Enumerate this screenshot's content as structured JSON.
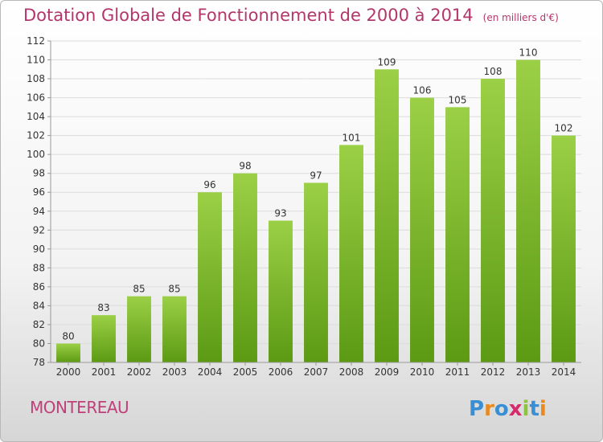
{
  "title": "Dotation Globale de Fonctionnement de 2000 à 2014",
  "subtitle": "(en milliers d'€)",
  "commune": "MONTEREAU",
  "brand": "Proxiti",
  "colors": {
    "bar_top": "#9bd046",
    "bar_bottom": "#5c9a14",
    "title": "#b3366b"
  },
  "chart_data": {
    "type": "bar",
    "title": "Dotation Globale de Fonctionnement de 2000 à 2014",
    "subtitle": "(en milliers d'€)",
    "categories": [
      "2000",
      "2001",
      "2002",
      "2003",
      "2004",
      "2005",
      "2006",
      "2007",
      "2008",
      "2009",
      "2010",
      "2011",
      "2012",
      "2013",
      "2014"
    ],
    "values": [
      80,
      83,
      85,
      85,
      96,
      98,
      93,
      97,
      101,
      109,
      106,
      105,
      108,
      110,
      102
    ],
    "ylim": [
      78,
      112
    ],
    "yticks": [
      78,
      80,
      82,
      84,
      86,
      88,
      90,
      92,
      94,
      96,
      98,
      100,
      102,
      104,
      106,
      108,
      110,
      112
    ],
    "grid": true,
    "legend": "none"
  }
}
